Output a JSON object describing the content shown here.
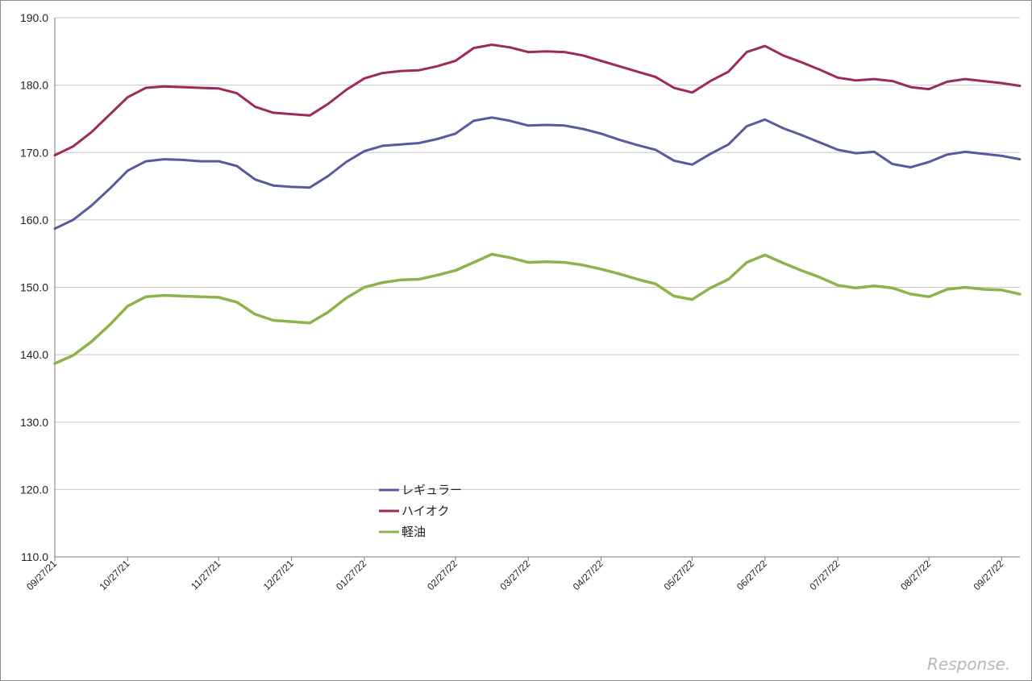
{
  "watermark": "Response.",
  "chart_data": {
    "type": "line",
    "title": "",
    "xlabel": "",
    "ylabel": "",
    "ylim": [
      110,
      190
    ],
    "y_ticks": [
      "110.0",
      "120.0",
      "130.0",
      "140.0",
      "150.0",
      "160.0",
      "170.0",
      "180.0",
      "190.0"
    ],
    "x_tick_labels": [
      "09/27/21",
      "10/27/21",
      "11/27/21",
      "12/27/21",
      "01/27/22",
      "02/27/22",
      "03/27/22",
      "04/27/22",
      "05/27/22",
      "06/27/22",
      "07/27/22",
      "08/27/22",
      "09/27/22"
    ],
    "x_tick_index": [
      0,
      4,
      9,
      13,
      17,
      22,
      26,
      30,
      35,
      39,
      43,
      48,
      52
    ],
    "legend_position": "center-left",
    "grid": true,
    "series": [
      {
        "name": "レギュラー",
        "color": "#575a9c",
        "values": [
          158.7,
          160.0,
          162.1,
          164.6,
          167.3,
          168.7,
          169.0,
          168.9,
          168.7,
          168.7,
          168.0,
          166.0,
          165.1,
          164.9,
          164.8,
          166.5,
          168.6,
          170.2,
          171.0,
          171.2,
          171.4,
          172.0,
          172.8,
          174.7,
          175.2,
          174.7,
          174.0,
          174.1,
          174.0,
          173.5,
          172.8,
          171.9,
          171.1,
          170.4,
          168.8,
          168.2,
          169.8,
          171.2,
          173.9,
          174.9,
          173.6,
          172.6,
          171.5,
          170.4,
          169.9,
          170.1,
          168.3,
          167.8,
          168.6,
          169.7,
          170.1,
          169.8,
          169.5,
          169.0
        ]
      },
      {
        "name": "ハイオク",
        "color": "#9c2a5c",
        "values": [
          169.6,
          170.9,
          173.0,
          175.6,
          178.2,
          179.6,
          179.8,
          179.7,
          179.6,
          179.5,
          178.8,
          176.8,
          175.9,
          175.7,
          175.5,
          177.2,
          179.3,
          181.0,
          181.8,
          182.1,
          182.2,
          182.8,
          183.6,
          185.5,
          186.0,
          185.6,
          184.9,
          185.0,
          184.9,
          184.4,
          183.6,
          182.8,
          182.0,
          181.2,
          179.6,
          178.9,
          180.6,
          182.0,
          184.9,
          185.8,
          184.4,
          183.4,
          182.3,
          181.1,
          180.7,
          180.9,
          180.6,
          179.7,
          179.4,
          180.5,
          180.9,
          180.6,
          180.3,
          179.9
        ]
      },
      {
        "name": "軽油",
        "color": "#8fb34c",
        "values": [
          138.7,
          139.9,
          141.9,
          144.4,
          147.2,
          148.6,
          148.8,
          148.7,
          148.6,
          148.5,
          147.8,
          146.0,
          145.1,
          144.9,
          144.7,
          146.3,
          148.4,
          150.0,
          150.7,
          151.1,
          151.2,
          151.8,
          152.5,
          153.7,
          154.9,
          154.4,
          153.7,
          153.8,
          153.7,
          153.3,
          152.7,
          152.0,
          151.2,
          150.5,
          148.7,
          148.2,
          149.9,
          151.2,
          153.7,
          154.8,
          153.6,
          152.5,
          151.5,
          150.3,
          149.9,
          150.2,
          149.9,
          149.0,
          148.6,
          149.7,
          150.0,
          149.7,
          149.6,
          149.0
        ]
      }
    ]
  }
}
